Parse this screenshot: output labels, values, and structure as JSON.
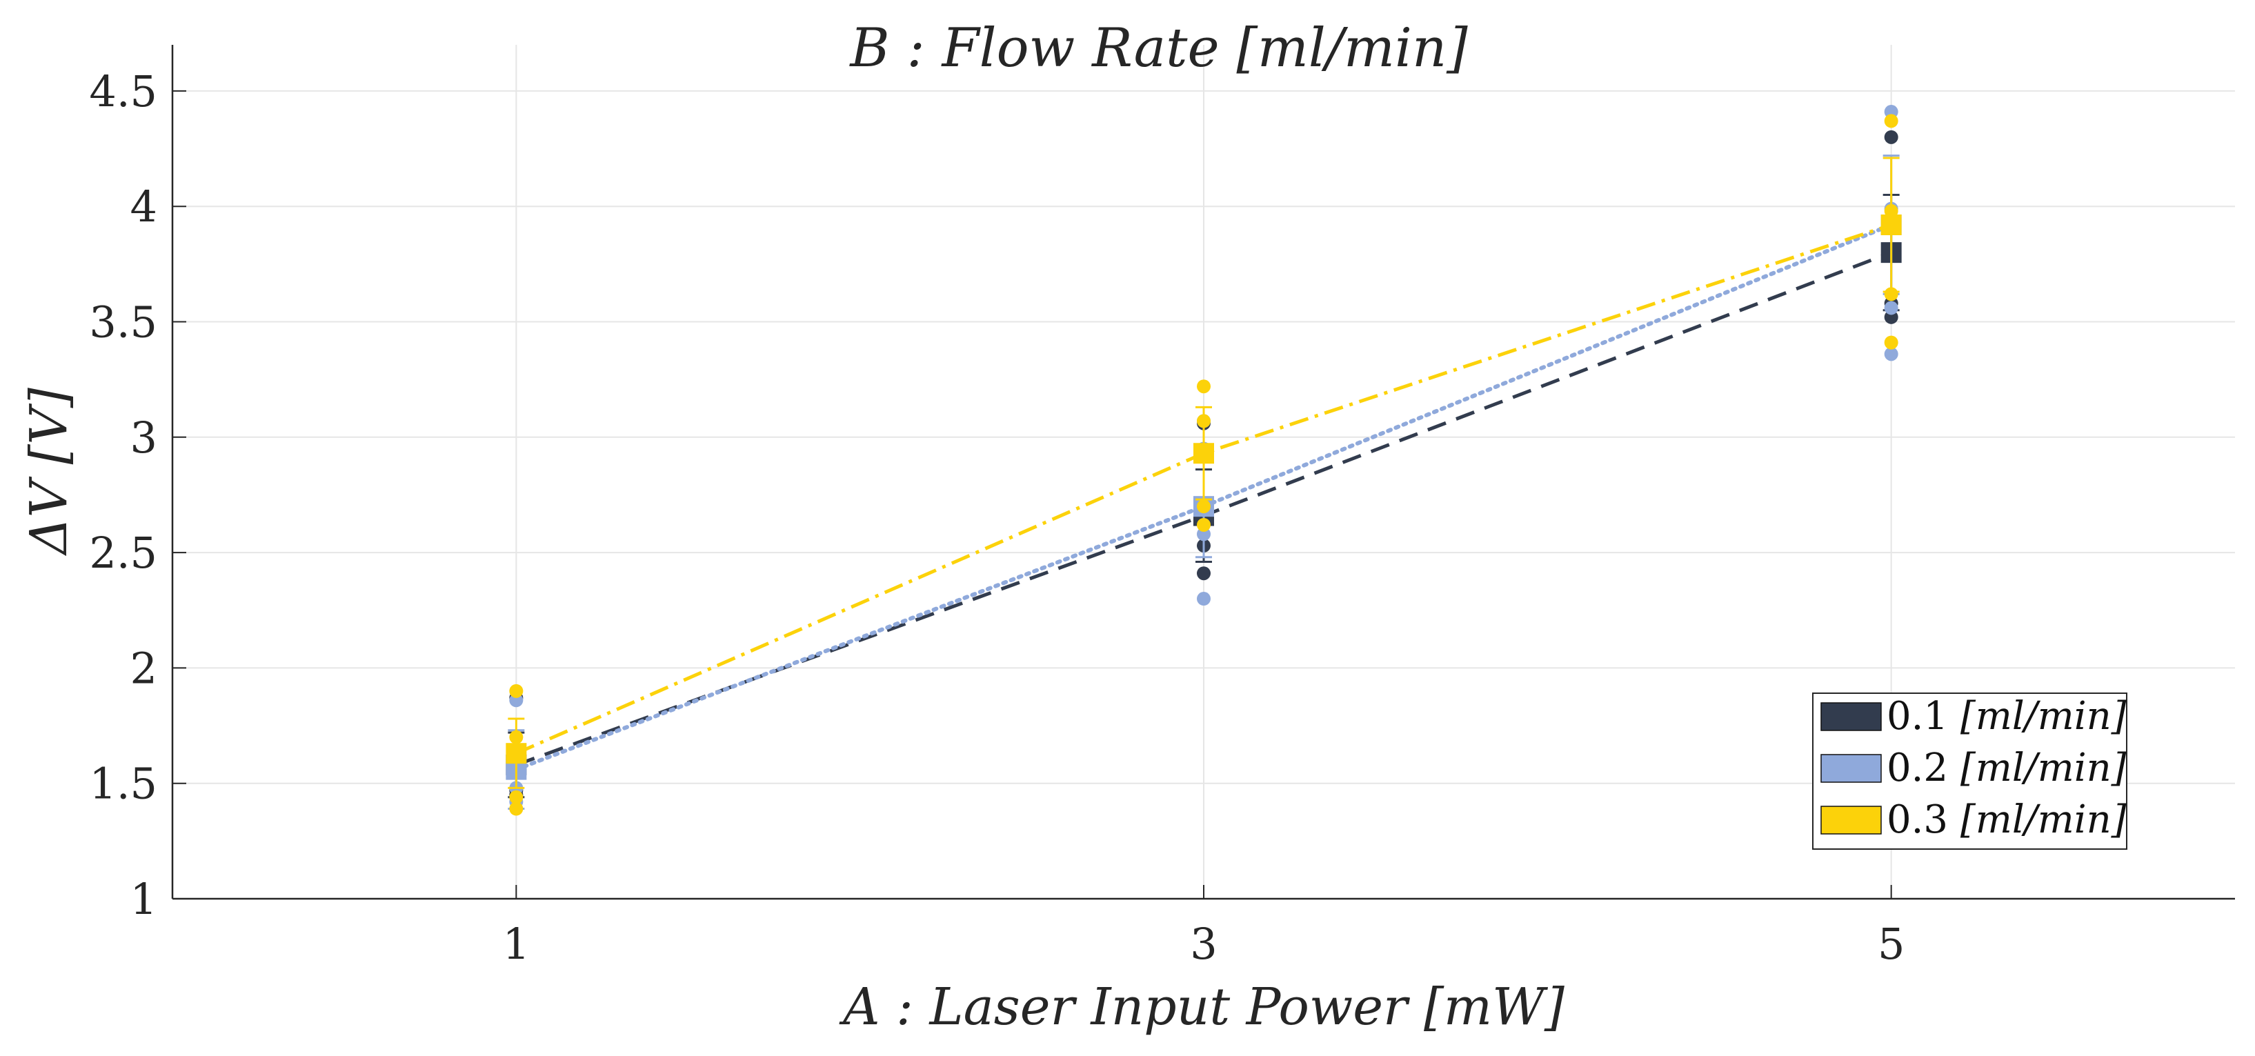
{
  "chart_data": {
    "type": "line",
    "title": "B :  Flow Rate [ml/min]",
    "xlabel": "A :  Laser Input Power [mW]",
    "ylabel": "ΔV [V]",
    "x": [
      1,
      3,
      5
    ],
    "xticks": [
      "1",
      "3",
      "5"
    ],
    "xlim": [
      0,
      6
    ],
    "yticks": [
      "1",
      "1.5",
      "2",
      "2.5",
      "3",
      "3.5",
      "4",
      "4.5"
    ],
    "ylim": [
      1,
      4.7
    ],
    "grid": true,
    "legend_position": "bottom-right",
    "series": [
      {
        "name": "0.1 [ml/min]",
        "label_num": "0.1",
        "label_unit": "[ml/min]",
        "color": "#323c4e",
        "line_style": "dashed",
        "means": [
          1.58,
          2.66,
          3.8
        ],
        "errors": [
          0.14,
          0.2,
          0.25
        ],
        "raw": [
          [
            1.45,
            1.47,
            1.58,
            1.62,
            1.87
          ],
          [
            2.41,
            2.53,
            2.68,
            2.7,
            3.06
          ],
          [
            3.52,
            3.58,
            3.8,
            3.95,
            4.3
          ]
        ]
      },
      {
        "name": "0.2 [ml/min]",
        "label_num": "0.2",
        "label_unit": "[ml/min]",
        "color": "#8fa9db",
        "line_style": "dotted",
        "means": [
          1.56,
          2.7,
          3.92
        ],
        "errors": [
          0.17,
          0.22,
          0.3
        ],
        "raw": [
          [
            1.42,
            1.48,
            1.55,
            1.6,
            1.86
          ],
          [
            2.3,
            2.58,
            2.7,
            2.95,
            3.07
          ],
          [
            3.36,
            3.56,
            3.93,
            3.99,
            4.41
          ]
        ]
      },
      {
        "name": "0.3 [ml/min]",
        "label_num": "0.3",
        "label_unit": "[ml/min]",
        "color": "#fcd20a",
        "line_style": "dashdot",
        "means": [
          1.63,
          2.93,
          3.92
        ],
        "errors": [
          0.15,
          0.2,
          0.29
        ],
        "raw": [
          [
            1.39,
            1.44,
            1.62,
            1.7,
            1.9
          ],
          [
            2.62,
            2.7,
            2.93,
            3.07,
            3.22
          ],
          [
            3.41,
            3.62,
            3.95,
            3.98,
            4.37
          ]
        ]
      }
    ]
  }
}
